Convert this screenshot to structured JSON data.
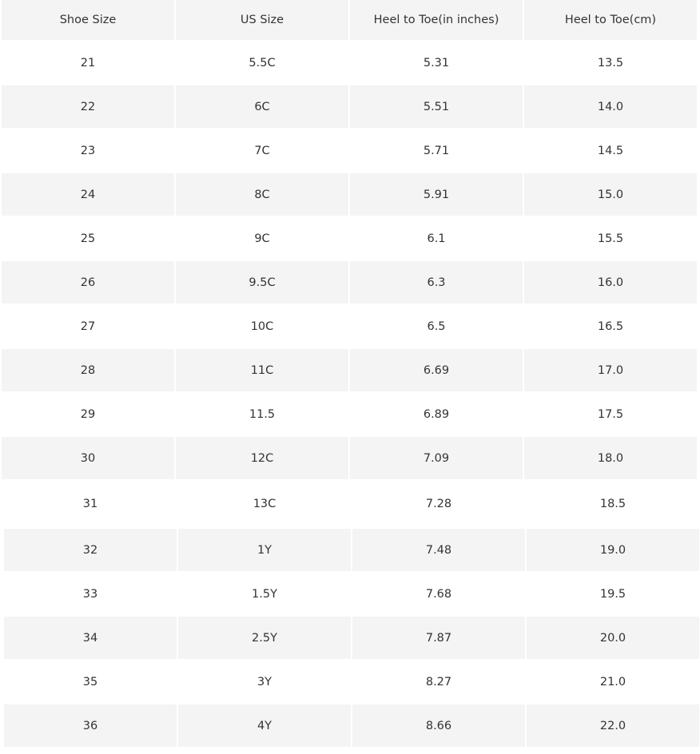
{
  "table": {
    "headers": [
      "Shoe Size",
      "US Size",
      "Heel to Toe(in inches)",
      "Heel to Toe(cm)"
    ],
    "rows": [
      [
        "21",
        "5.5C",
        "5.31",
        "13.5"
      ],
      [
        "22",
        "6C",
        "5.51",
        "14.0"
      ],
      [
        "23",
        "7C",
        "5.71",
        "14.5"
      ],
      [
        "24",
        "8C",
        "5.91",
        "15.0"
      ],
      [
        "25",
        "9C",
        "6.1",
        "15.5"
      ],
      [
        "26",
        "9.5C",
        "6.3",
        "16.0"
      ],
      [
        "27",
        "10C",
        "6.5",
        "16.5"
      ],
      [
        "28",
        "11C",
        "6.69",
        "17.0"
      ],
      [
        "29",
        "11.5",
        "6.89",
        "17.5"
      ],
      [
        "30",
        "12C",
        "7.09",
        "18.0"
      ],
      [
        "31",
        "13C",
        "7.28",
        "18.5"
      ],
      [
        "32",
        "1Y",
        "7.48",
        "19.0"
      ],
      [
        "33",
        "1.5Y",
        "7.68",
        "19.5"
      ],
      [
        "34",
        "2.5Y",
        "7.87",
        "20.0"
      ],
      [
        "35",
        "3Y",
        "8.27",
        "21.0"
      ],
      [
        "36",
        "4Y",
        "8.66",
        "22.0"
      ]
    ]
  },
  "colors": {
    "stripe": "#f4f4f4",
    "text": "#333333"
  }
}
